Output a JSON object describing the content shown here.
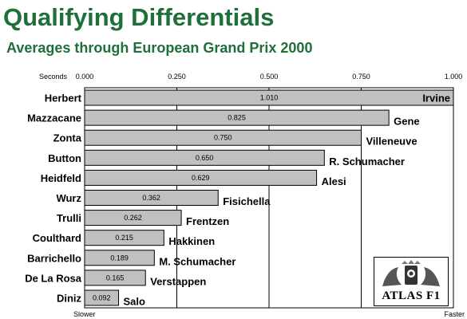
{
  "title": "Qualifying Differentials",
  "subtitle": "Averages through European Grand Prix 2000",
  "chart_data": {
    "type": "bar",
    "orientation": "horizontal",
    "axis_title": "Seconds",
    "xlim": [
      0,
      1
    ],
    "x_ticks": [
      "0.000",
      "0.250",
      "0.500",
      "0.750",
      "1.000"
    ],
    "x_tick_values": [
      0,
      0.25,
      0.5,
      0.75,
      1.0
    ],
    "axis_left_label": "Slower",
    "axis_right_label": "Faster",
    "categories": [
      "Herbert",
      "Mazzacane",
      "Zonta",
      "Button",
      "Heidfeld",
      "Wurz",
      "Trulli",
      "Coulthard",
      "Barrichello",
      "De La Rosa",
      "Diniz"
    ],
    "values": [
      1.01,
      0.825,
      0.75,
      0.65,
      0.629,
      0.362,
      0.262,
      0.215,
      0.189,
      0.165,
      0.092
    ],
    "value_labels": [
      "1.010",
      "0.825",
      "0.750",
      "0.650",
      "0.629",
      "0.362",
      "0.262",
      "0.215",
      "0.189",
      "0.165",
      "0.092"
    ],
    "teammates": [
      "Irvine",
      "Gene",
      "Villeneuve",
      "R. Schumacher",
      "Alesi",
      "Fisichella",
      "Frentzen",
      "Hakkinen",
      "M. Schumacher",
      "Verstappen",
      "Salo"
    ],
    "grid": true,
    "bar_color": "#c0c0c0"
  },
  "logo": {
    "text": "ATLAS F1"
  },
  "colors": {
    "title": "#1f6f3a",
    "bar": "#c0c0c0",
    "grid": "#000000"
  }
}
